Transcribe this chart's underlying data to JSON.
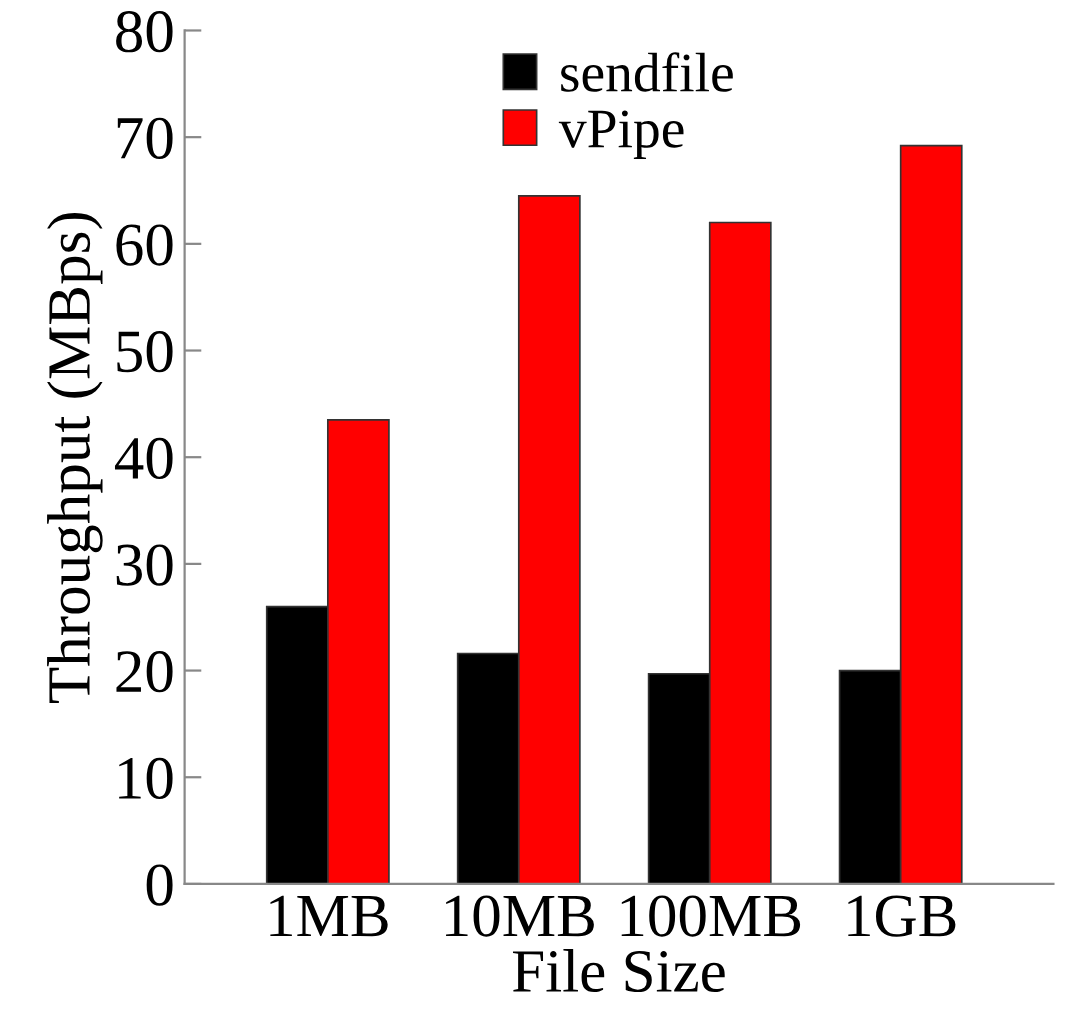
{
  "chart_data": {
    "type": "bar",
    "xlabel": "File Size",
    "ylabel": "Throughput (MBps)",
    "categories": [
      "1MB",
      "10MB",
      "100MB",
      "1GB"
    ],
    "series": [
      {
        "name": "sendfile",
        "color": "#000000",
        "values": [
          26.0,
          21.6,
          19.7,
          20.0
        ]
      },
      {
        "name": "vPipe",
        "color": "#ff0000",
        "values": [
          43.5,
          64.5,
          62.0,
          69.2
        ]
      }
    ],
    "ylim": [
      0,
      80
    ],
    "yticks": [
      0,
      10,
      20,
      30,
      40,
      50,
      60,
      70,
      80
    ],
    "grid": false,
    "legend": "top"
  }
}
